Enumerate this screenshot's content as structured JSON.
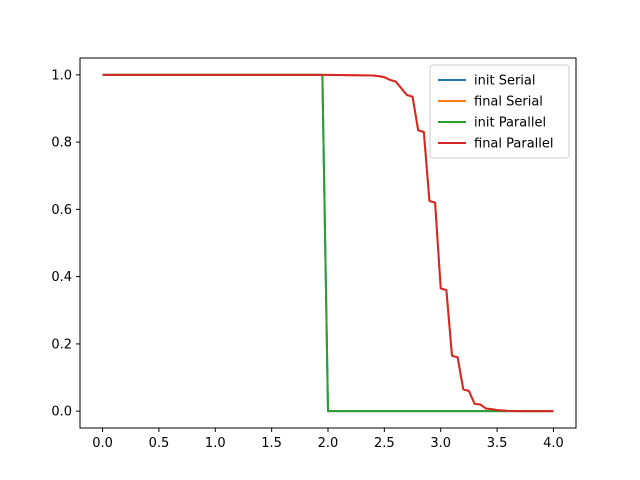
{
  "chart_data": {
    "type": "line",
    "title": "",
    "xlabel": "",
    "ylabel": "",
    "xlim": [
      -0.2,
      4.2
    ],
    "ylim": [
      -0.05,
      1.05
    ],
    "xticks": [
      "0.0",
      "0.5",
      "1.0",
      "1.5",
      "2.0",
      "2.5",
      "3.0",
      "3.5",
      "4.0"
    ],
    "yticks": [
      "0.0",
      "0.2",
      "0.4",
      "0.6",
      "0.8",
      "1.0"
    ],
    "grid": false,
    "legend_position": "top-right",
    "series": [
      {
        "name": "init Serial",
        "color": "#1f77b4",
        "x": [
          0.0,
          1.95,
          2.0,
          4.0
        ],
        "y": [
          1.0,
          1.0,
          0.0,
          0.0
        ]
      },
      {
        "name": "final Serial",
        "color": "#ff7f0e",
        "x": [
          0.0,
          2.0,
          2.4,
          2.45,
          2.5,
          2.55,
          2.6,
          2.65,
          2.7,
          2.75,
          2.8,
          2.85,
          2.9,
          2.95,
          3.0,
          3.05,
          3.1,
          3.15,
          3.2,
          3.25,
          3.3,
          3.35,
          3.4,
          3.45,
          3.5,
          3.55,
          3.6,
          3.7,
          4.0
        ],
        "y": [
          1.0,
          1.0,
          0.998,
          0.996,
          0.993,
          0.985,
          0.98,
          0.96,
          0.94,
          0.935,
          0.835,
          0.83,
          0.625,
          0.62,
          0.365,
          0.36,
          0.165,
          0.16,
          0.065,
          0.06,
          0.022,
          0.02,
          0.008,
          0.006,
          0.003,
          0.002,
          0.001,
          0.0,
          0.0
        ]
      },
      {
        "name": "init Parallel",
        "color": "#2ca02c",
        "x": [
          0.0,
          1.95,
          2.0,
          4.0
        ],
        "y": [
          1.0,
          1.0,
          0.0,
          0.0
        ]
      },
      {
        "name": "final Parallel",
        "color": "#d62728",
        "x": [
          0.0,
          2.0,
          2.4,
          2.45,
          2.5,
          2.55,
          2.6,
          2.65,
          2.7,
          2.75,
          2.8,
          2.85,
          2.9,
          2.95,
          3.0,
          3.05,
          3.1,
          3.15,
          3.2,
          3.25,
          3.3,
          3.35,
          3.4,
          3.45,
          3.5,
          3.55,
          3.6,
          3.7,
          4.0
        ],
        "y": [
          1.0,
          1.0,
          0.998,
          0.996,
          0.993,
          0.985,
          0.98,
          0.96,
          0.94,
          0.935,
          0.835,
          0.83,
          0.625,
          0.62,
          0.365,
          0.36,
          0.165,
          0.16,
          0.065,
          0.06,
          0.022,
          0.02,
          0.008,
          0.006,
          0.003,
          0.002,
          0.001,
          0.0,
          0.0
        ]
      }
    ]
  }
}
